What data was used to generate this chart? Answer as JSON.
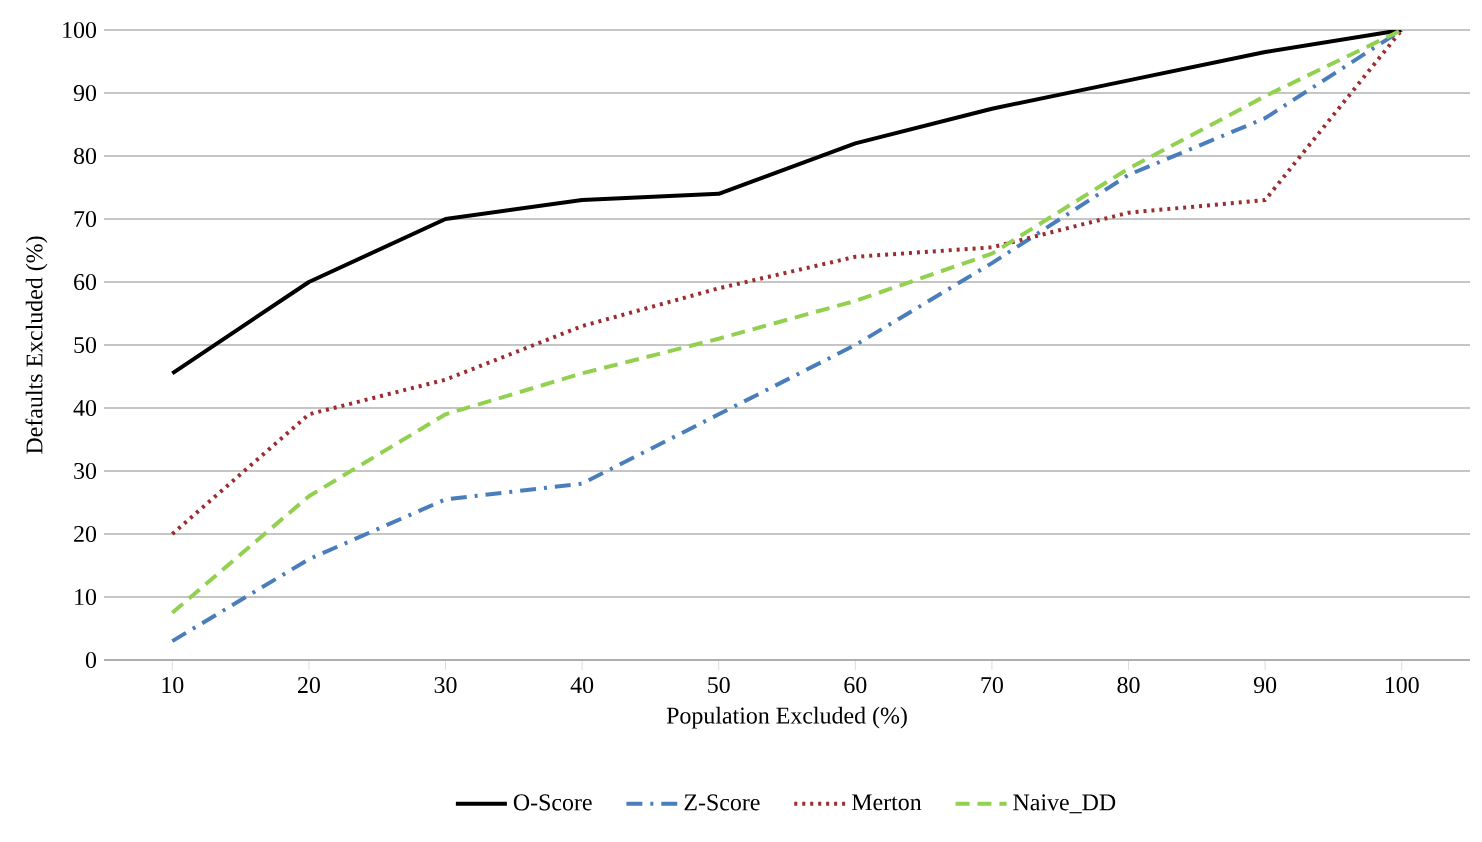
{
  "chart_data": {
    "type": "line",
    "xlabel": "Population Excluded (%)",
    "ylabel": "Defaults Excluded (%)",
    "categories": [
      "10",
      "20",
      "30",
      "40",
      "50",
      "60",
      "70",
      "80",
      "90",
      "100"
    ],
    "series": [
      {
        "name": "O-Score",
        "color": "#000000",
        "line_style": "solid",
        "values": [
          45.5,
          60,
          70,
          73,
          74,
          82,
          87.5,
          92,
          96.5,
          100
        ]
      },
      {
        "name": "Z-Score",
        "color": "#4a7ebb",
        "line_style": "dashdot",
        "values": [
          3,
          16,
          25.5,
          28,
          39,
          50,
          63,
          77,
          86,
          100
        ]
      },
      {
        "name": "Merton",
        "color": "#9b2d30",
        "line_style": "dotted",
        "values": [
          20,
          39,
          44.5,
          53,
          59,
          64,
          65.5,
          71,
          73,
          100
        ]
      },
      {
        "name": "Naive_DD",
        "color": "#92d050",
        "line_style": "dashed",
        "values": [
          7.5,
          26,
          39,
          45.5,
          51,
          57,
          64.5,
          78,
          89.5,
          100
        ]
      }
    ],
    "ylim": [
      0,
      100
    ],
    "yticks": [
      0,
      10,
      20,
      30,
      40,
      50,
      60,
      70,
      80,
      90,
      100
    ],
    "grid": "y",
    "legend": "bottom",
    "marker": "none"
  }
}
